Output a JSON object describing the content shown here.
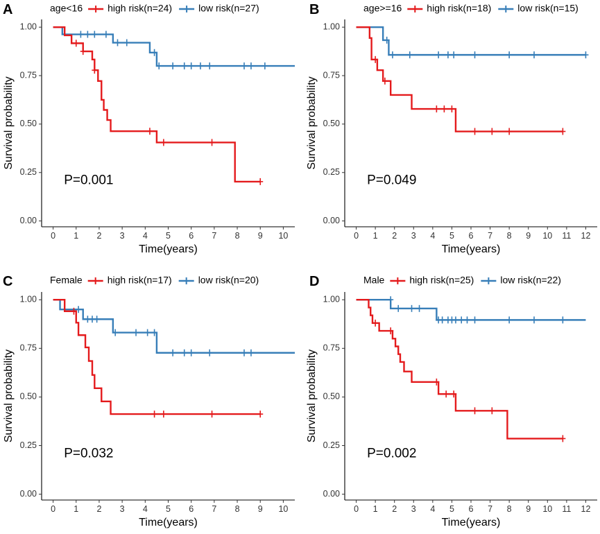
{
  "colors": {
    "high": "#e41a1c",
    "low": "#377eb8"
  },
  "chart_data": [
    {
      "type": "line",
      "panel_label": "A",
      "legend_title": "age<16",
      "xlabel": "Time(years)",
      "ylabel": "Survival probability",
      "p_value": "P=0.001",
      "xlim": [
        -0.5,
        10.5
      ],
      "ylim": [
        -0.03,
        1.04
      ],
      "xticks": [
        0,
        1,
        2,
        3,
        4,
        5,
        6,
        7,
        8,
        9,
        10
      ],
      "yticks": [
        0.0,
        0.25,
        0.5,
        0.75,
        1.0
      ],
      "ytick_labels": [
        "0.00",
        "0.25",
        "0.50",
        "0.75",
        "1.00"
      ],
      "series": [
        {
          "name": "high risk(n=24)",
          "color_key": "high",
          "steps": [
            [
              0,
              1.0
            ],
            [
              0.5,
              0.958
            ],
            [
              0.8,
              0.917
            ],
            [
              1.3,
              0.875
            ],
            [
              1.7,
              0.833
            ],
            [
              1.8,
              0.778
            ],
            [
              1.95,
              0.722
            ],
            [
              2.1,
              0.625
            ],
            [
              2.2,
              0.573
            ],
            [
              2.35,
              0.521
            ],
            [
              2.5,
              0.463
            ],
            [
              4.5,
              0.405
            ],
            [
              7.9,
              0.203
            ],
            [
              9.0,
              0.203
            ]
          ],
          "censors": [
            [
              1.0,
              0.917
            ],
            [
              1.3,
              0.875
            ],
            [
              1.8,
              0.778
            ],
            [
              4.2,
              0.463
            ],
            [
              4.8,
              0.405
            ],
            [
              6.9,
              0.405
            ],
            [
              9.0,
              0.203
            ]
          ]
        },
        {
          "name": "low risk(n=27)",
          "color_key": "low",
          "steps": [
            [
              0,
              1.0
            ],
            [
              0.4,
              0.963
            ],
            [
              2.6,
              0.92
            ],
            [
              4.2,
              0.869
            ],
            [
              4.5,
              0.8
            ],
            [
              10.5,
              0.8
            ]
          ],
          "censors": [
            [
              1.2,
              0.963
            ],
            [
              1.5,
              0.963
            ],
            [
              1.8,
              0.963
            ],
            [
              2.3,
              0.963
            ],
            [
              2.8,
              0.92
            ],
            [
              3.2,
              0.92
            ],
            [
              4.4,
              0.869
            ],
            [
              4.6,
              0.8
            ],
            [
              5.2,
              0.8
            ],
            [
              5.7,
              0.8
            ],
            [
              6.0,
              0.8
            ],
            [
              6.4,
              0.8
            ],
            [
              6.8,
              0.8
            ],
            [
              8.3,
              0.8
            ],
            [
              8.6,
              0.8
            ],
            [
              9.2,
              0.8
            ]
          ]
        }
      ]
    },
    {
      "type": "line",
      "panel_label": "B",
      "legend_title": "age>=16",
      "xlabel": "Time(years)",
      "ylabel": "Survival probability",
      "p_value": "P=0.049",
      "xlim": [
        -0.6,
        12.6
      ],
      "ylim": [
        -0.03,
        1.04
      ],
      "xticks": [
        0,
        1,
        2,
        3,
        4,
        5,
        6,
        7,
        8,
        9,
        10,
        11,
        12
      ],
      "yticks": [
        0.0,
        0.25,
        0.5,
        0.75,
        1.0
      ],
      "ytick_labels": [
        "0.00",
        "0.25",
        "0.50",
        "0.75",
        "1.00"
      ],
      "series": [
        {
          "name": "high risk(n=18)",
          "color_key": "high",
          "steps": [
            [
              0,
              1.0
            ],
            [
              0.7,
              0.944
            ],
            [
              0.8,
              0.833
            ],
            [
              1.1,
              0.778
            ],
            [
              1.4,
              0.722
            ],
            [
              1.8,
              0.65
            ],
            [
              2.9,
              0.578
            ],
            [
              5.2,
              0.462
            ],
            [
              10.8,
              0.462
            ]
          ],
          "censors": [
            [
              1.0,
              0.833
            ],
            [
              1.5,
              0.722
            ],
            [
              4.2,
              0.578
            ],
            [
              4.6,
              0.578
            ],
            [
              5.0,
              0.578
            ],
            [
              6.2,
              0.462
            ],
            [
              7.1,
              0.462
            ],
            [
              8.0,
              0.462
            ],
            [
              10.8,
              0.462
            ]
          ]
        },
        {
          "name": "low risk(n=15)",
          "color_key": "low",
          "steps": [
            [
              0,
              1.0
            ],
            [
              1.4,
              0.933
            ],
            [
              1.7,
              0.857
            ],
            [
              12.0,
              0.857
            ]
          ],
          "censors": [
            [
              1.6,
              0.933
            ],
            [
              1.9,
              0.857
            ],
            [
              2.8,
              0.857
            ],
            [
              4.3,
              0.857
            ],
            [
              4.8,
              0.857
            ],
            [
              5.1,
              0.857
            ],
            [
              6.2,
              0.857
            ],
            [
              8.0,
              0.857
            ],
            [
              9.3,
              0.857
            ],
            [
              12.0,
              0.857
            ]
          ]
        }
      ]
    },
    {
      "type": "line",
      "panel_label": "C",
      "legend_title": "Female",
      "xlabel": "Time(years)",
      "ylabel": "Survival probability",
      "p_value": "P=0.032",
      "xlim": [
        -0.5,
        10.5
      ],
      "ylim": [
        -0.03,
        1.04
      ],
      "xticks": [
        0,
        1,
        2,
        3,
        4,
        5,
        6,
        7,
        8,
        9,
        10
      ],
      "yticks": [
        0.0,
        0.25,
        0.5,
        0.75,
        1.0
      ],
      "ytick_labels": [
        "0.00",
        "0.25",
        "0.50",
        "0.75",
        "1.00"
      ],
      "series": [
        {
          "name": "high risk(n=17)",
          "color_key": "high",
          "steps": [
            [
              0,
              1.0
            ],
            [
              0.5,
              0.941
            ],
            [
              1.0,
              0.882
            ],
            [
              1.1,
              0.818
            ],
            [
              1.4,
              0.755
            ],
            [
              1.55,
              0.685
            ],
            [
              1.7,
              0.613
            ],
            [
              1.8,
              0.545
            ],
            [
              2.1,
              0.477
            ],
            [
              2.5,
              0.412
            ],
            [
              9.0,
              0.412
            ]
          ],
          "censors": [
            [
              0.9,
              0.941
            ],
            [
              4.4,
              0.412
            ],
            [
              4.8,
              0.412
            ],
            [
              6.9,
              0.412
            ],
            [
              9.0,
              0.412
            ]
          ]
        },
        {
          "name": "low risk(n=20)",
          "color_key": "low",
          "steps": [
            [
              0,
              1.0
            ],
            [
              0.3,
              0.95
            ],
            [
              1.3,
              0.9
            ],
            [
              2.6,
              0.831
            ],
            [
              4.5,
              0.727
            ],
            [
              10.5,
              0.727
            ]
          ],
          "censors": [
            [
              1.1,
              0.95
            ],
            [
              1.5,
              0.9
            ],
            [
              1.7,
              0.9
            ],
            [
              1.9,
              0.9
            ],
            [
              2.7,
              0.831
            ],
            [
              3.6,
              0.831
            ],
            [
              4.1,
              0.831
            ],
            [
              4.4,
              0.831
            ],
            [
              5.2,
              0.727
            ],
            [
              5.7,
              0.727
            ],
            [
              6.0,
              0.727
            ],
            [
              6.8,
              0.727
            ],
            [
              8.3,
              0.727
            ],
            [
              8.6,
              0.727
            ]
          ]
        }
      ]
    },
    {
      "type": "line",
      "panel_label": "D",
      "legend_title": "Male",
      "xlabel": "Time(years)",
      "ylabel": "Survival probability",
      "p_value": "P=0.002",
      "xlim": [
        -0.6,
        12.6
      ],
      "ylim": [
        -0.03,
        1.04
      ],
      "xticks": [
        0,
        1,
        2,
        3,
        4,
        5,
        6,
        7,
        8,
        9,
        10,
        11,
        12
      ],
      "yticks": [
        0.0,
        0.25,
        0.5,
        0.75,
        1.0
      ],
      "ytick_labels": [
        "0.00",
        "0.25",
        "0.50",
        "0.75",
        "1.00"
      ],
      "series": [
        {
          "name": "high risk(n=25)",
          "color_key": "high",
          "steps": [
            [
              0,
              1.0
            ],
            [
              0.65,
              0.96
            ],
            [
              0.75,
              0.92
            ],
            [
              0.85,
              0.88
            ],
            [
              1.2,
              0.84
            ],
            [
              1.9,
              0.8
            ],
            [
              2.05,
              0.76
            ],
            [
              2.2,
              0.72
            ],
            [
              2.3,
              0.68
            ],
            [
              2.5,
              0.631
            ],
            [
              2.9,
              0.577
            ],
            [
              4.3,
              0.515
            ],
            [
              5.2,
              0.429
            ],
            [
              7.9,
              0.286
            ],
            [
              10.8,
              0.286
            ]
          ],
          "censors": [
            [
              1.0,
              0.88
            ],
            [
              1.8,
              0.84
            ],
            [
              4.2,
              0.577
            ],
            [
              4.7,
              0.515
            ],
            [
              5.1,
              0.515
            ],
            [
              6.2,
              0.429
            ],
            [
              7.1,
              0.429
            ],
            [
              10.8,
              0.286
            ]
          ]
        },
        {
          "name": "low risk(n=22)",
          "color_key": "low",
          "steps": [
            [
              0,
              1.0
            ],
            [
              1.8,
              0.955
            ],
            [
              4.2,
              0.896
            ],
            [
              12.0,
              0.896
            ]
          ],
          "censors": [
            [
              1.8,
              1.0
            ],
            [
              2.2,
              0.955
            ],
            [
              2.9,
              0.955
            ],
            [
              3.3,
              0.955
            ],
            [
              4.3,
              0.896
            ],
            [
              4.5,
              0.896
            ],
            [
              4.8,
              0.896
            ],
            [
              5.0,
              0.896
            ],
            [
              5.2,
              0.896
            ],
            [
              5.5,
              0.896
            ],
            [
              5.8,
              0.896
            ],
            [
              6.2,
              0.896
            ],
            [
              8.0,
              0.896
            ],
            [
              9.3,
              0.896
            ],
            [
              10.8,
              0.896
            ]
          ]
        }
      ]
    }
  ]
}
